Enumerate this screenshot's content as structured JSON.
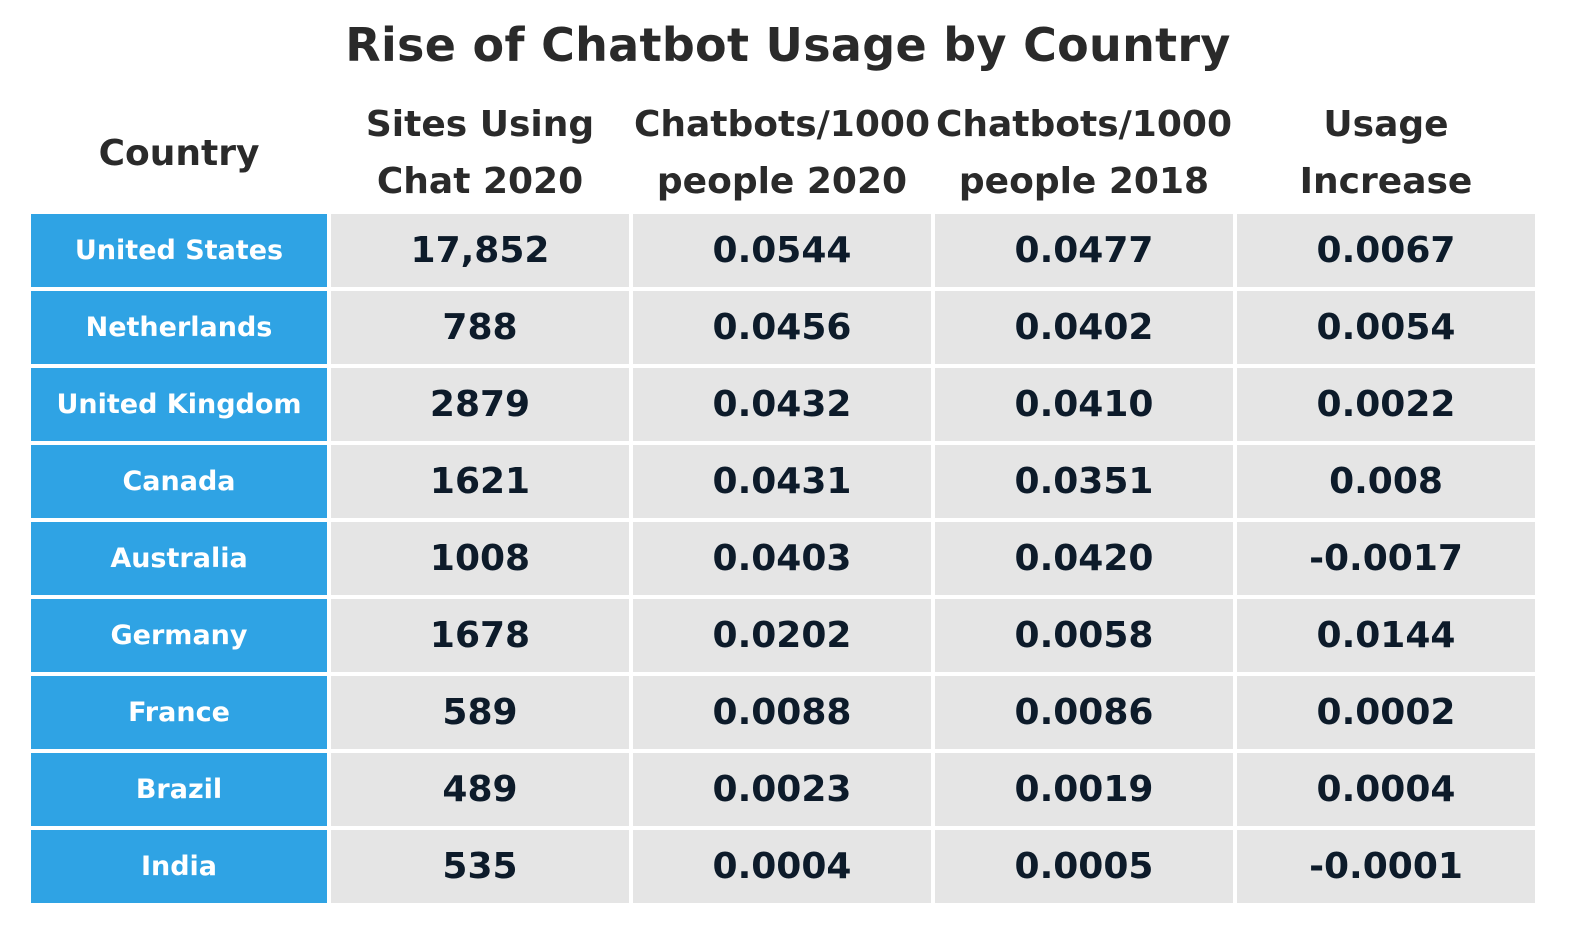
{
  "colors": {
    "country_cell_bg": "#2fa3e4",
    "country_cell_text": "#ffffff",
    "value_cell_bg": "#e5e5e5",
    "value_cell_text": "#0d1b2a",
    "header_text": "#2a2a2a"
  },
  "chart_data": {
    "type": "table",
    "title": "Rise of Chatbot Usage by Country",
    "columns": [
      "Country",
      "Sites Using Chat 2020",
      "Chatbots/1000 people 2020",
      "Chatbots/1000 people 2018",
      "Usage Increase"
    ],
    "rows": [
      [
        "United States",
        "17,852",
        "0.0544",
        "0.0477",
        "0.0067"
      ],
      [
        "Netherlands",
        "788",
        "0.0456",
        "0.0402",
        "0.0054"
      ],
      [
        "United Kingdom",
        "2879",
        "0.0432",
        "0.0410",
        "0.0022"
      ],
      [
        "Canada",
        "1621",
        "0.0431",
        "0.0351",
        "0.008"
      ],
      [
        "Australia",
        "1008",
        "0.0403",
        "0.0420",
        "-0.0017"
      ],
      [
        "Germany",
        "1678",
        "0.0202",
        "0.0058",
        "0.0144"
      ],
      [
        "France",
        "589",
        "0.0088",
        "0.0086",
        "0.0002"
      ],
      [
        "Brazil",
        "489",
        "0.0023",
        "0.0019",
        "0.0004"
      ],
      [
        "India",
        "535",
        "0.0004",
        "0.0005",
        "-0.0001"
      ]
    ]
  }
}
